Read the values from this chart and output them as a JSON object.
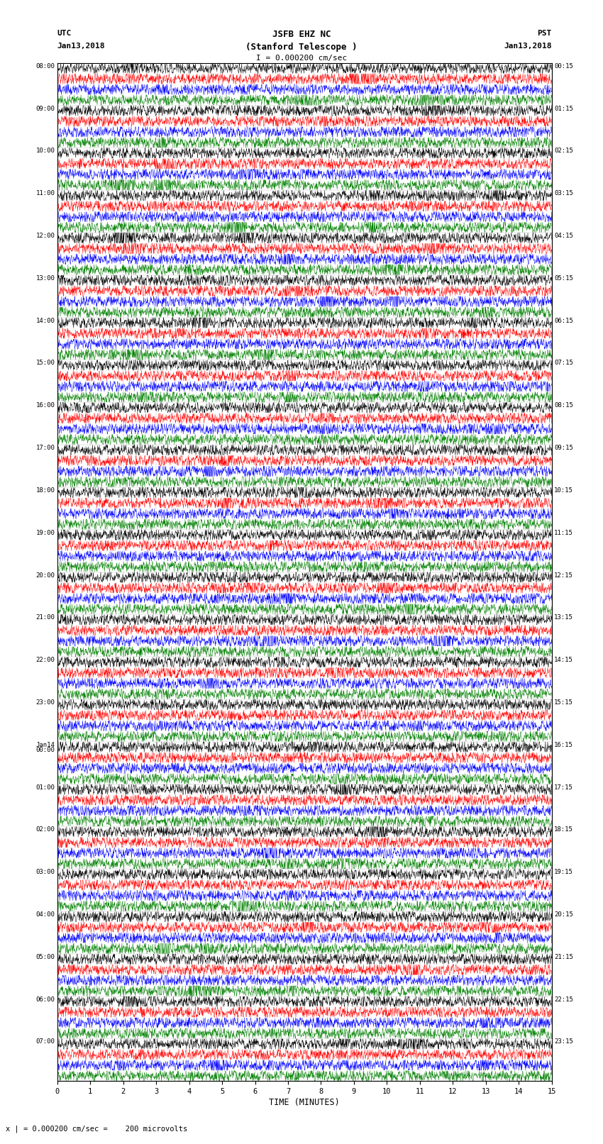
{
  "title_line1": "JSFB EHZ NC",
  "title_line2": "(Stanford Telescope )",
  "scale_label": "I = 0.000200 cm/sec",
  "bottom_label": "x | = 0.000200 cm/sec =    200 microvolts",
  "utc_label": "UTC",
  "utc_date": "Jan13,2018",
  "pst_label": "PST",
  "pst_date": "Jan13,2018",
  "xlabel": "TIME (MINUTES)",
  "left_times_major": [
    "08:00",
    "09:00",
    "10:00",
    "11:00",
    "12:00",
    "13:00",
    "14:00",
    "15:00",
    "16:00",
    "17:00",
    "18:00",
    "19:00",
    "20:00",
    "21:00",
    "22:00",
    "23:00",
    "Jan14\n00:00",
    "01:00",
    "02:00",
    "03:00",
    "04:00",
    "05:00",
    "06:00",
    "07:00"
  ],
  "right_times_major": [
    "00:15",
    "01:15",
    "02:15",
    "03:15",
    "04:15",
    "05:15",
    "06:15",
    "07:15",
    "08:15",
    "09:15",
    "10:15",
    "11:15",
    "12:15",
    "13:15",
    "14:15",
    "15:15",
    "16:15",
    "17:15",
    "18:15",
    "19:15",
    "20:15",
    "21:15",
    "22:15",
    "23:15"
  ],
  "trace_colors": [
    "black",
    "red",
    "blue",
    "green"
  ],
  "n_traces": 96,
  "n_hour_groups": 24,
  "traces_per_group": 4,
  "xmin": 0,
  "xmax": 15,
  "xticks": [
    0,
    1,
    2,
    3,
    4,
    5,
    6,
    7,
    8,
    9,
    10,
    11,
    12,
    13,
    14,
    15
  ],
  "bg_color": "white",
  "fig_width": 8.5,
  "fig_height": 16.13,
  "dpi": 100
}
